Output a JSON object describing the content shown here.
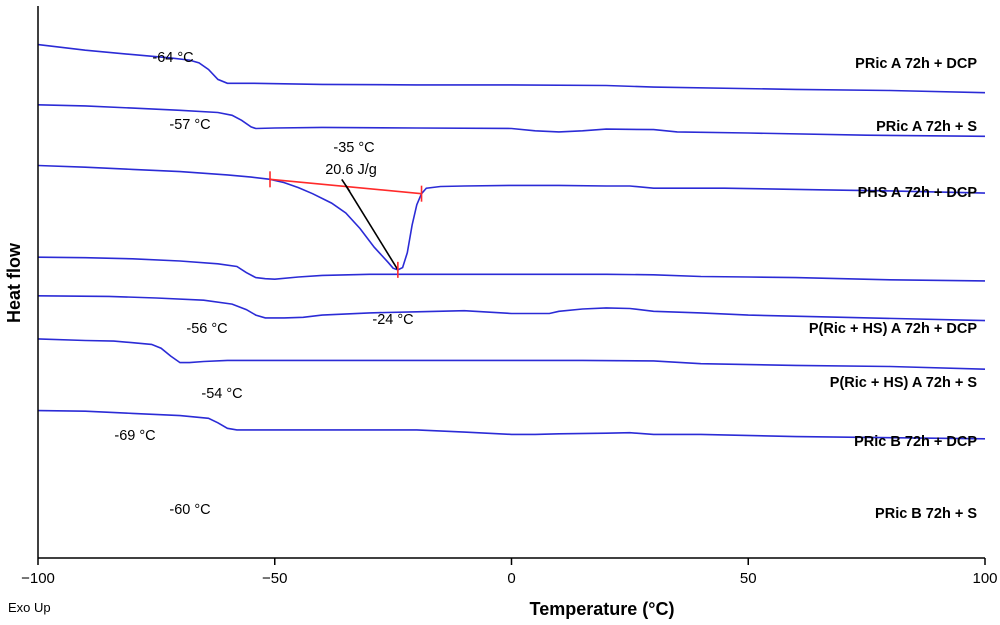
{
  "chart_data": {
    "type": "line",
    "title": "",
    "xlabel": "Temperature (°C)",
    "ylabel": "Heat flow",
    "corner_note": "Exo Up",
    "xlim": [
      -100,
      100
    ],
    "x_ticks": [
      -100,
      -50,
      0,
      50,
      100
    ],
    "x_tick_labels": [
      "−100",
      "−50",
      "0",
      "50",
      "100"
    ],
    "yticks_shown": false,
    "grid": false,
    "line_color": "#2b2bd6",
    "series": [
      {
        "name": "PRic A 72h + DCP",
        "transition_label": "-64 °C",
        "points": [
          [
            -100,
            0.93
          ],
          [
            -90,
            0.92
          ],
          [
            -80,
            0.912
          ],
          [
            -72,
            0.906
          ],
          [
            -68,
            0.902
          ],
          [
            -66,
            0.897
          ],
          [
            -64,
            0.885
          ],
          [
            -62,
            0.867
          ],
          [
            -60,
            0.86
          ],
          [
            -55,
            0.86
          ],
          [
            -40,
            0.858
          ],
          [
            -20,
            0.857
          ],
          [
            0,
            0.857
          ],
          [
            20,
            0.856
          ],
          [
            30,
            0.853
          ],
          [
            60,
            0.849
          ],
          [
            80,
            0.847
          ],
          [
            100,
            0.843
          ]
        ]
      },
      {
        "name": "PRic A 72h + S",
        "transition_label": "-57 °C",
        "points": [
          [
            -100,
            0.821
          ],
          [
            -90,
            0.819
          ],
          [
            -80,
            0.815
          ],
          [
            -70,
            0.811
          ],
          [
            -62,
            0.807
          ],
          [
            -59,
            0.802
          ],
          [
            -57,
            0.793
          ],
          [
            -55,
            0.781
          ],
          [
            -54,
            0.778
          ],
          [
            -50,
            0.779
          ],
          [
            -40,
            0.78
          ],
          [
            -20,
            0.779
          ],
          [
            0,
            0.778
          ],
          [
            5,
            0.774
          ],
          [
            10,
            0.772
          ],
          [
            15,
            0.774
          ],
          [
            20,
            0.777
          ],
          [
            30,
            0.776
          ],
          [
            35,
            0.772
          ],
          [
            50,
            0.77
          ],
          [
            75,
            0.766
          ],
          [
            100,
            0.764
          ]
        ]
      },
      {
        "name": "PHS A 72h + DCP",
        "annotations": [
          "-35 °C",
          "20.6 J/g",
          "-24 °C"
        ],
        "points": [
          [
            -100,
            0.711
          ],
          [
            -90,
            0.708
          ],
          [
            -80,
            0.704
          ],
          [
            -70,
            0.7
          ],
          [
            -60,
            0.694
          ],
          [
            -55,
            0.69
          ],
          [
            -51,
            0.686
          ],
          [
            -48,
            0.68
          ],
          [
            -45,
            0.671
          ],
          [
            -42,
            0.66
          ],
          [
            -38,
            0.643
          ],
          [
            -35,
            0.625
          ],
          [
            -32,
            0.597
          ],
          [
            -29,
            0.563
          ],
          [
            -26,
            0.535
          ],
          [
            -25,
            0.525
          ],
          [
            -24,
            0.522
          ],
          [
            -23,
            0.526
          ],
          [
            -22,
            0.553
          ],
          [
            -21,
            0.603
          ],
          [
            -20,
            0.64
          ],
          [
            -19,
            0.66
          ],
          [
            -18,
            0.67
          ],
          [
            -15,
            0.673
          ],
          [
            -10,
            0.674
          ],
          [
            0,
            0.675
          ],
          [
            10,
            0.675
          ],
          [
            20,
            0.674
          ],
          [
            25,
            0.674
          ],
          [
            30,
            0.67
          ],
          [
            45,
            0.67
          ],
          [
            65,
            0.667
          ],
          [
            80,
            0.665
          ],
          [
            100,
            0.661
          ]
        ]
      },
      {
        "name": "P(Ric + HS) A 72h + DCP",
        "transition_label": "-56 °C",
        "points": [
          [
            -100,
            0.545
          ],
          [
            -90,
            0.544
          ],
          [
            -80,
            0.542
          ],
          [
            -70,
            0.538
          ],
          [
            -62,
            0.533
          ],
          [
            -58,
            0.528
          ],
          [
            -56,
            0.517
          ],
          [
            -54,
            0.508
          ],
          [
            -52,
            0.506
          ],
          [
            -50,
            0.505
          ],
          [
            -45,
            0.509
          ],
          [
            -40,
            0.512
          ],
          [
            -30,
            0.514
          ],
          [
            -10,
            0.514
          ],
          [
            20,
            0.514
          ],
          [
            30,
            0.513
          ],
          [
            40,
            0.51
          ],
          [
            50,
            0.509
          ],
          [
            60,
            0.508
          ],
          [
            80,
            0.504
          ],
          [
            100,
            0.502
          ]
        ]
      },
      {
        "name": "P(Ric + HS) A 72h + S",
        "transition_label": "-54 °C",
        "points": [
          [
            -100,
            0.475
          ],
          [
            -85,
            0.474
          ],
          [
            -75,
            0.471
          ],
          [
            -65,
            0.467
          ],
          [
            -59,
            0.46
          ],
          [
            -56,
            0.45
          ],
          [
            -54,
            0.44
          ],
          [
            -52,
            0.435
          ],
          [
            -48,
            0.435
          ],
          [
            -44,
            0.436
          ],
          [
            -40,
            0.44
          ],
          [
            -30,
            0.444
          ],
          [
            -20,
            0.446
          ],
          [
            -10,
            0.448
          ],
          [
            0,
            0.443
          ],
          [
            8,
            0.443
          ],
          [
            10,
            0.447
          ],
          [
            15,
            0.451
          ],
          [
            20,
            0.453
          ],
          [
            25,
            0.452
          ],
          [
            30,
            0.447
          ],
          [
            40,
            0.444
          ],
          [
            50,
            0.44
          ],
          [
            70,
            0.436
          ],
          [
            100,
            0.43
          ]
        ]
      },
      {
        "name": "PRic B 72h + DCP",
        "transition_label": "-69 °C",
        "points": [
          [
            -100,
            0.397
          ],
          [
            -90,
            0.394
          ],
          [
            -84,
            0.393
          ],
          [
            -80,
            0.39
          ],
          [
            -76,
            0.387
          ],
          [
            -74,
            0.38
          ],
          [
            -72,
            0.366
          ],
          [
            -70,
            0.354
          ],
          [
            -68,
            0.354
          ],
          [
            -65,
            0.356
          ],
          [
            -60,
            0.358
          ],
          [
            -50,
            0.358
          ],
          [
            -30,
            0.358
          ],
          [
            -10,
            0.358
          ],
          [
            0,
            0.358
          ],
          [
            15,
            0.358
          ],
          [
            30,
            0.357
          ],
          [
            40,
            0.352
          ],
          [
            60,
            0.349
          ],
          [
            80,
            0.347
          ],
          [
            100,
            0.342
          ]
        ]
      },
      {
        "name": "PRic B 72h + S",
        "transition_label": "-60 °C",
        "points": [
          [
            -100,
            0.267
          ],
          [
            -90,
            0.266
          ],
          [
            -80,
            0.262
          ],
          [
            -70,
            0.258
          ],
          [
            -64,
            0.253
          ],
          [
            -62,
            0.245
          ],
          [
            -60,
            0.235
          ],
          [
            -58,
            0.232
          ],
          [
            -50,
            0.232
          ],
          [
            -40,
            0.232
          ],
          [
            -20,
            0.232
          ],
          [
            -10,
            0.228
          ],
          [
            0,
            0.224
          ],
          [
            5,
            0.224
          ],
          [
            10,
            0.225
          ],
          [
            20,
            0.226
          ],
          [
            25,
            0.227
          ],
          [
            30,
            0.224
          ],
          [
            40,
            0.224
          ],
          [
            60,
            0.22
          ],
          [
            80,
            0.218
          ],
          [
            100,
            0.216
          ]
        ]
      }
    ],
    "construction_lines": {
      "baseline": {
        "color": "#ff2a2a",
        "from": [
          -51,
          0.686
        ],
        "to": [
          -19,
          0.66
        ]
      },
      "peak_marker": {
        "color": "#000000",
        "from": [
          -35,
          0.675
        ],
        "to": [
          -24,
          0.522
        ]
      }
    }
  }
}
